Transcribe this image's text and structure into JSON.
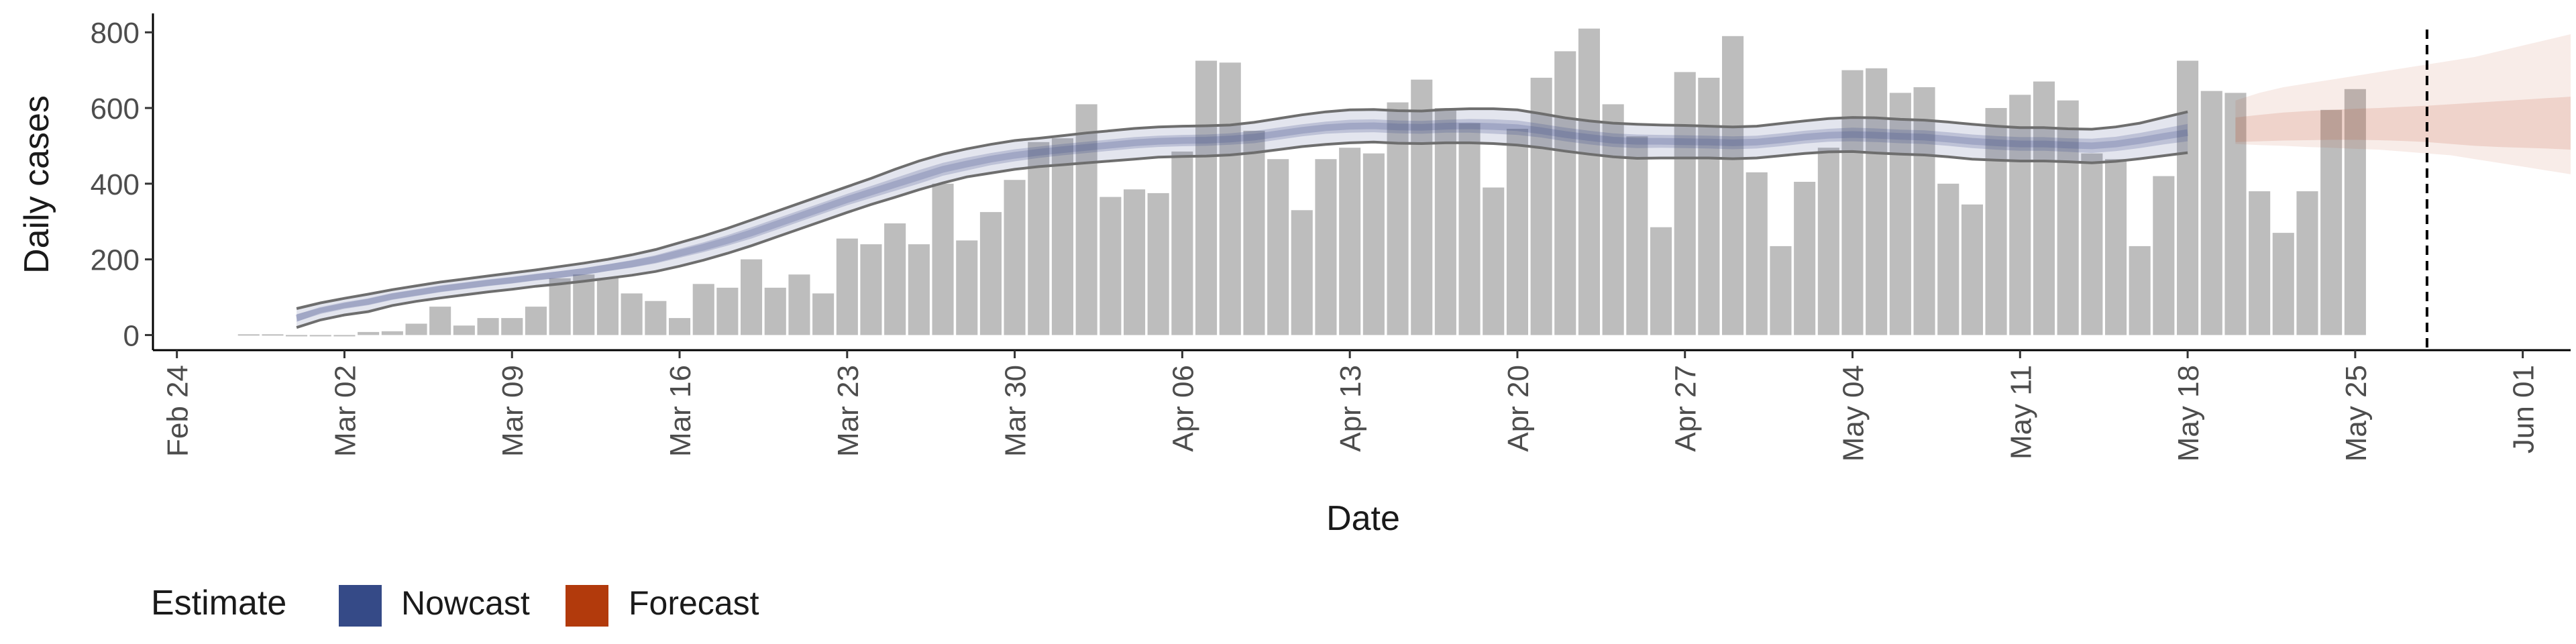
{
  "chart_data": {
    "type": "bar",
    "title": "",
    "xlabel": "Date",
    "ylabel": "Daily cases",
    "xlim": [
      "2020-02-23",
      "2020-06-03"
    ],
    "ylim": [
      -40,
      850
    ],
    "y_ticks": [
      0,
      200,
      400,
      600,
      800
    ],
    "x_ticks": [
      {
        "date": "2020-02-24",
        "label": "Feb 24"
      },
      {
        "date": "2020-03-02",
        "label": "Mar 02"
      },
      {
        "date": "2020-03-09",
        "label": "Mar 09"
      },
      {
        "date": "2020-03-16",
        "label": "Mar 16"
      },
      {
        "date": "2020-03-23",
        "label": "Mar 23"
      },
      {
        "date": "2020-03-30",
        "label": "Mar 30"
      },
      {
        "date": "2020-04-06",
        "label": "Apr 06"
      },
      {
        "date": "2020-04-13",
        "label": "Apr 13"
      },
      {
        "date": "2020-04-20",
        "label": "Apr 20"
      },
      {
        "date": "2020-04-27",
        "label": "Apr 27"
      },
      {
        "date": "2020-05-04",
        "label": "May 04"
      },
      {
        "date": "2020-05-11",
        "label": "May 11"
      },
      {
        "date": "2020-05-18",
        "label": "May 18"
      },
      {
        "date": "2020-05-25",
        "label": "May 25"
      },
      {
        "date": "2020-06-01",
        "label": "Jun 01"
      }
    ],
    "bars": {
      "start_date": "2020-02-27",
      "color": "#bdbdbd",
      "values": [
        2,
        2,
        0,
        0,
        0,
        8,
        10,
        30,
        75,
        25,
        45,
        45,
        75,
        150,
        160,
        150,
        110,
        90,
        45,
        135,
        125,
        200,
        125,
        160,
        110,
        255,
        240,
        295,
        240,
        400,
        250,
        325,
        410,
        510,
        520,
        610,
        365,
        385,
        375,
        485,
        725,
        720,
        540,
        465,
        330,
        465,
        495,
        480,
        615,
        675,
        600,
        560,
        390,
        545,
        680,
        750,
        810,
        610,
        525,
        285,
        695,
        680,
        790,
        430,
        235,
        405,
        495,
        700,
        705,
        640,
        655,
        400,
        345,
        600,
        635,
        670,
        620,
        480,
        465,
        235,
        420,
        725,
        645,
        640,
        380,
        270,
        380,
        595,
        650
      ]
    },
    "estimate_start_date": "2020-02-29",
    "nowcast": {
      "name": "Nowcast",
      "color": "#3b4a8a",
      "median": [
        45,
        65,
        78,
        88,
        102,
        112,
        122,
        130,
        138,
        145,
        153,
        160,
        168,
        178,
        188,
        200,
        216,
        232,
        250,
        270,
        292,
        314,
        336,
        358,
        378,
        398,
        418,
        438,
        452,
        465,
        475,
        483,
        490,
        496,
        502,
        508,
        512,
        514,
        515,
        518,
        523,
        532,
        541,
        548,
        552,
        553,
        550,
        549,
        552,
        553,
        551,
        548,
        540,
        530,
        522,
        515,
        512,
        512,
        511,
        510,
        508,
        510,
        516,
        523,
        528,
        530,
        528,
        525,
        523,
        518,
        512,
        508,
        505,
        505,
        502,
        500,
        505,
        514,
        525,
        535
      ],
      "upper": [
        70,
        85,
        97,
        108,
        120,
        130,
        140,
        148,
        156,
        164,
        172,
        181,
        190,
        200,
        212,
        226,
        244,
        262,
        282,
        304,
        326,
        348,
        370,
        392,
        414,
        438,
        460,
        478,
        492,
        504,
        514,
        520,
        527,
        534,
        540,
        546,
        550,
        552,
        553,
        555,
        562,
        572,
        582,
        590,
        595,
        596,
        593,
        592,
        596,
        598,
        598,
        595,
        585,
        574,
        566,
        560,
        557,
        555,
        554,
        552,
        550,
        552,
        559,
        566,
        572,
        575,
        574,
        570,
        568,
        563,
        557,
        552,
        548,
        548,
        545,
        544,
        550,
        560,
        575,
        590
      ],
      "lower": [
        20,
        40,
        53,
        62,
        78,
        89,
        98,
        106,
        114,
        121,
        129,
        135,
        142,
        150,
        158,
        168,
        182,
        198,
        216,
        236,
        258,
        280,
        302,
        324,
        345,
        364,
        384,
        402,
        418,
        428,
        438,
        445,
        450,
        455,
        460,
        465,
        470,
        472,
        473,
        476,
        482,
        490,
        498,
        504,
        508,
        510,
        507,
        506,
        508,
        508,
        506,
        502,
        495,
        486,
        478,
        471,
        467,
        468,
        468,
        468,
        466,
        468,
        474,
        480,
        484,
        485,
        481,
        478,
        476,
        471,
        465,
        462,
        460,
        460,
        458,
        455,
        459,
        466,
        474,
        482
      ],
      "band_upper": [
        55,
        72,
        85,
        96,
        110,
        120,
        130,
        138,
        146,
        153,
        161,
        169,
        177,
        187,
        198,
        211,
        228,
        245,
        264,
        285,
        307,
        329,
        351,
        373,
        394,
        415,
        436,
        455,
        469,
        481,
        491,
        498,
        505,
        511,
        517,
        523,
        527,
        529,
        530,
        533,
        539,
        548,
        557,
        564,
        569,
        570,
        567,
        566,
        569,
        571,
        570,
        567,
        558,
        548,
        540,
        533,
        530,
        529,
        528,
        527,
        525,
        527,
        533,
        540,
        545,
        548,
        546,
        543,
        541,
        536,
        530,
        526,
        523,
        523,
        520,
        519,
        524,
        534,
        546,
        558
      ],
      "band_lower": [
        35,
        58,
        71,
        80,
        94,
        104,
        114,
        122,
        130,
        137,
        145,
        151,
        159,
        169,
        178,
        189,
        204,
        219,
        236,
        255,
        277,
        299,
        321,
        343,
        362,
        381,
        400,
        421,
        435,
        449,
        459,
        468,
        475,
        481,
        487,
        493,
        497,
        499,
        500,
        503,
        507,
        516,
        525,
        532,
        535,
        536,
        533,
        532,
        535,
        535,
        532,
        529,
        522,
        512,
        504,
        497,
        494,
        495,
        494,
        493,
        491,
        493,
        499,
        506,
        511,
        512,
        510,
        507,
        505,
        500,
        494,
        490,
        487,
        487,
        484,
        481,
        486,
        494,
        504,
        512
      ]
    },
    "forecast": {
      "name": "Forecast",
      "color": "#b8421a",
      "start_date": "2020-05-20",
      "median": [
        540,
        542,
        545,
        548,
        550,
        552,
        553,
        555,
        557,
        558,
        560,
        562,
        563,
        565,
        566
      ],
      "upper": [
        620,
        640,
        655,
        665,
        675,
        685,
        695,
        705,
        715,
        725,
        735,
        750,
        765,
        780,
        795
      ],
      "lower": [
        505,
        502,
        500,
        497,
        495,
        492,
        490,
        485,
        480,
        475,
        465,
        455,
        445,
        435,
        425
      ],
      "band_upper": [
        575,
        582,
        588,
        592,
        595,
        598,
        600,
        603,
        606,
        610,
        614,
        618,
        622,
        626,
        630
      ],
      "band_lower": [
        510,
        512,
        514,
        515,
        516,
        516,
        515,
        513,
        510,
        505,
        500,
        497,
        495,
        493,
        490
      ]
    },
    "vline_date": "2020-05-28",
    "legend": {
      "title": "Estimate",
      "position": "bottom-left",
      "items": [
        {
          "label": "Nowcast",
          "color": "#354a87"
        },
        {
          "label": "Forecast",
          "color": "#b23a0c"
        }
      ]
    },
    "grid": false
  }
}
